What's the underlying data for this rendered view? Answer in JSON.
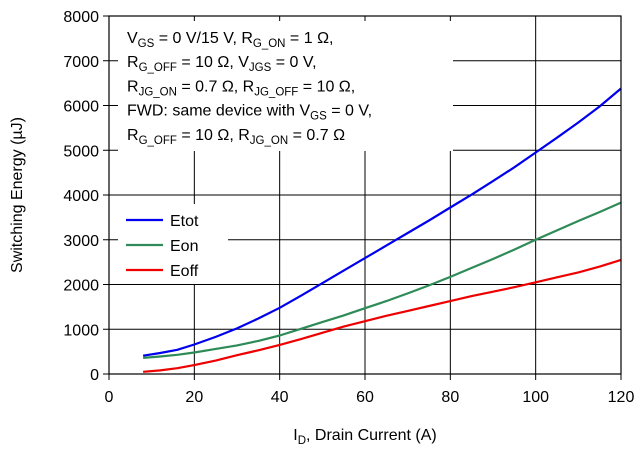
{
  "chart_data": {
    "type": "line",
    "xlabel": {
      "main": "I",
      "sub": "D",
      "rest": ", Drain Current (A)"
    },
    "ylabel": "Switching Energy (µJ)",
    "xlim": [
      0,
      120
    ],
    "ylim": [
      0,
      8000
    ],
    "xticks": [
      "0",
      "20",
      "40",
      "60",
      "80",
      "100",
      "120"
    ],
    "yticks": [
      "0",
      "1000",
      "2000",
      "3000",
      "4000",
      "5000",
      "6000",
      "7000",
      "8000"
    ],
    "grid": true,
    "legend_position": "middle-left",
    "annotation_lines": [
      [
        {
          "t": "V"
        },
        {
          "t": "GS",
          "sub": true
        },
        {
          "t": " = 0 V/15 V, R"
        },
        {
          "t": "G_ON",
          "sub": true
        },
        {
          "t": " = 1 Ω,"
        }
      ],
      [
        {
          "t": "R"
        },
        {
          "t": "G_OFF",
          "sub": true
        },
        {
          "t": " = 10 Ω, V"
        },
        {
          "t": "JGS",
          "sub": true
        },
        {
          "t": " = 0 V,"
        }
      ],
      [
        {
          "t": "R"
        },
        {
          "t": "JG_ON",
          "sub": true
        },
        {
          "t": " = 0.7 Ω, R"
        },
        {
          "t": "JG_OFF",
          "sub": true
        },
        {
          "t": " = 10 Ω,"
        }
      ],
      [
        {
          "t": "FWD: same device with V"
        },
        {
          "t": "GS",
          "sub": true
        },
        {
          "t": " = 0 V,"
        }
      ],
      [
        {
          "t": "R"
        },
        {
          "t": "G_OFF",
          "sub": true
        },
        {
          "t": " = 10 Ω, R"
        },
        {
          "t": "JG_ON",
          "sub": true
        },
        {
          "t": " = 0.7 Ω"
        }
      ]
    ],
    "series": [
      {
        "name": "Etot",
        "color": "#0000ee",
        "x": [
          8,
          12,
          16,
          20,
          25,
          30,
          35,
          40,
          45,
          50,
          55,
          60,
          65,
          70,
          75,
          80,
          85,
          90,
          95,
          100,
          105,
          110,
          115,
          120
        ],
        "y": [
          410,
          470,
          540,
          660,
          830,
          1020,
          1240,
          1480,
          1750,
          2030,
          2310,
          2590,
          2870,
          3150,
          3430,
          3720,
          4010,
          4310,
          4620,
          4950,
          5280,
          5620,
          5980,
          6380
        ]
      },
      {
        "name": "Eon",
        "color": "#2e8b57",
        "x": [
          8,
          12,
          16,
          20,
          25,
          30,
          35,
          40,
          45,
          50,
          55,
          60,
          65,
          70,
          75,
          80,
          85,
          90,
          95,
          100,
          105,
          110,
          115,
          120
        ],
        "y": [
          360,
          390,
          430,
          480,
          560,
          640,
          740,
          860,
          1010,
          1160,
          1310,
          1470,
          1630,
          1800,
          1980,
          2170,
          2370,
          2570,
          2780,
          3000,
          3210,
          3420,
          3620,
          3830
        ]
      },
      {
        "name": "Eoff",
        "color": "#ee0000",
        "x": [
          8,
          12,
          16,
          20,
          25,
          30,
          35,
          40,
          45,
          50,
          55,
          60,
          65,
          70,
          75,
          80,
          85,
          90,
          95,
          100,
          105,
          110,
          115,
          120
        ],
        "y": [
          50,
          80,
          130,
          200,
          300,
          420,
          530,
          650,
          780,
          920,
          1060,
          1180,
          1300,
          1410,
          1520,
          1630,
          1740,
          1840,
          1940,
          2050,
          2160,
          2270,
          2400,
          2550
        ]
      }
    ]
  }
}
